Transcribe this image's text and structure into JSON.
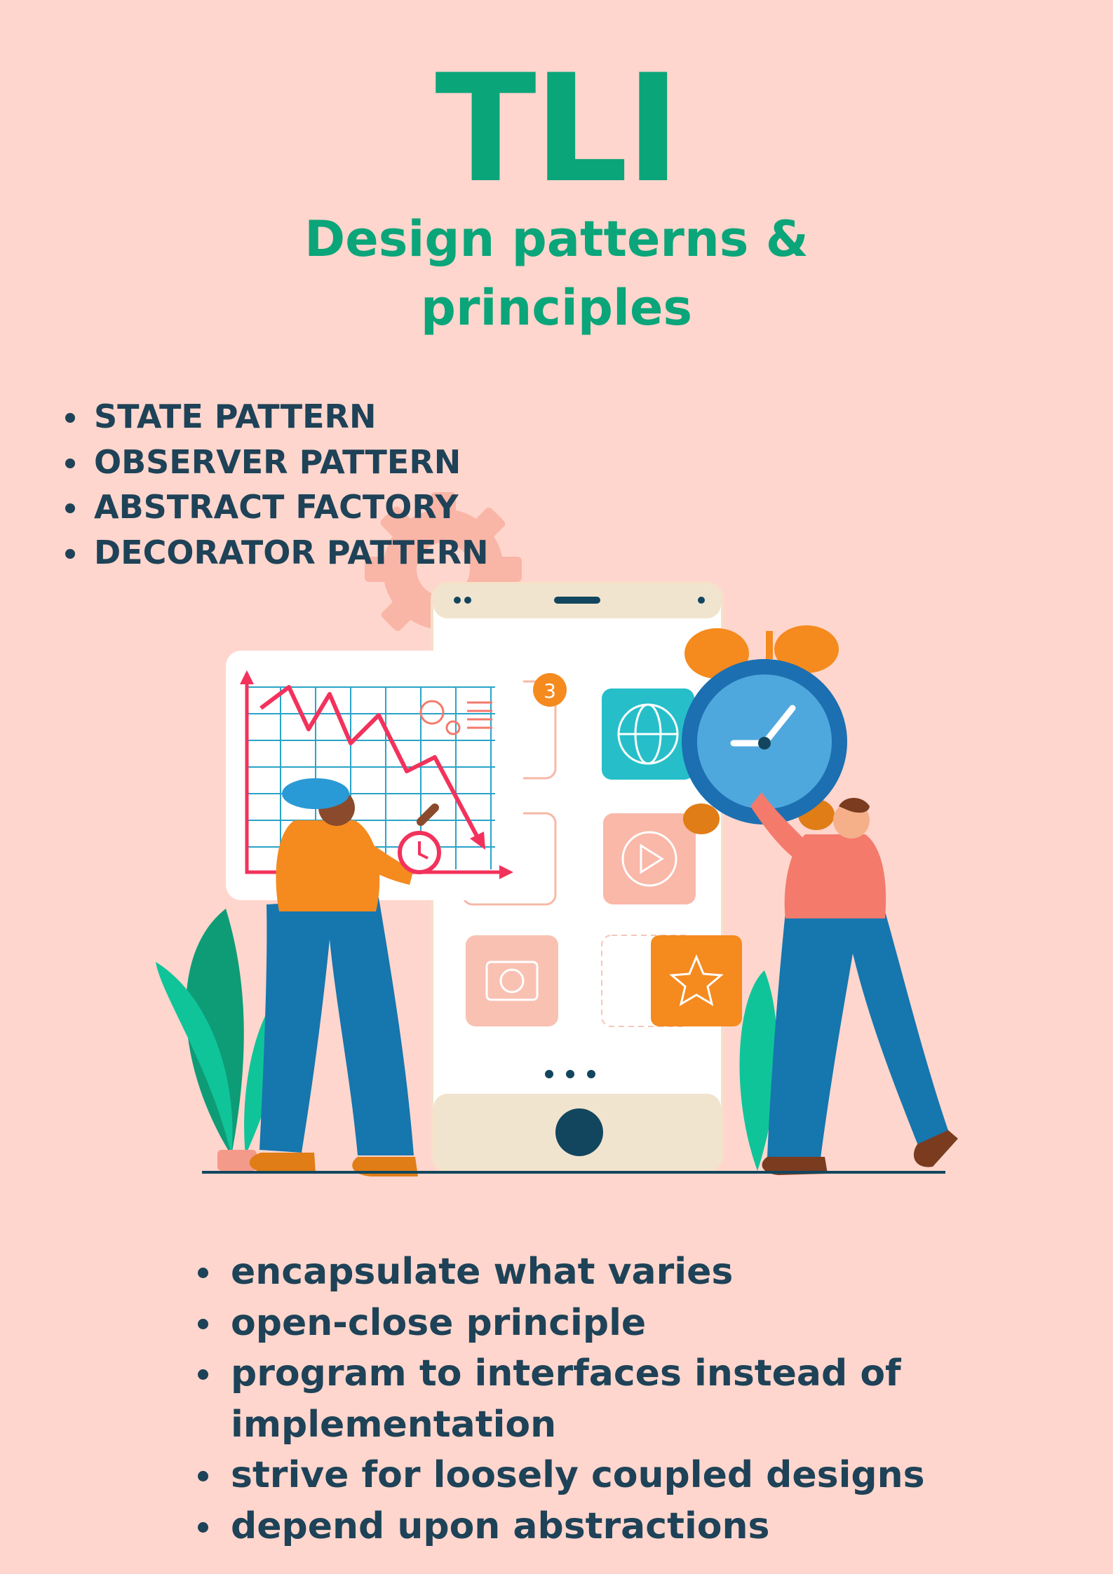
{
  "header": {
    "title": "TLI",
    "subtitle_line1": "Design patterns &",
    "subtitle_line2": "principles"
  },
  "patterns": [
    "STATE PATTERN",
    "OBSERVER PATTERN",
    "ABSTRACT FACTORY",
    "DECORATOR PATTERN"
  ],
  "principles": [
    "encapsulate what varies",
    "open-close principle",
    "program to interfaces instead of implementation",
    "strive for loosely coupled designs",
    "depend upon abstractions"
  ],
  "illustration": {
    "notification_badge": "3"
  },
  "colors": {
    "background": "#FFD6CD",
    "accent_green": "#0BA57A",
    "text_navy": "#1E4257"
  }
}
